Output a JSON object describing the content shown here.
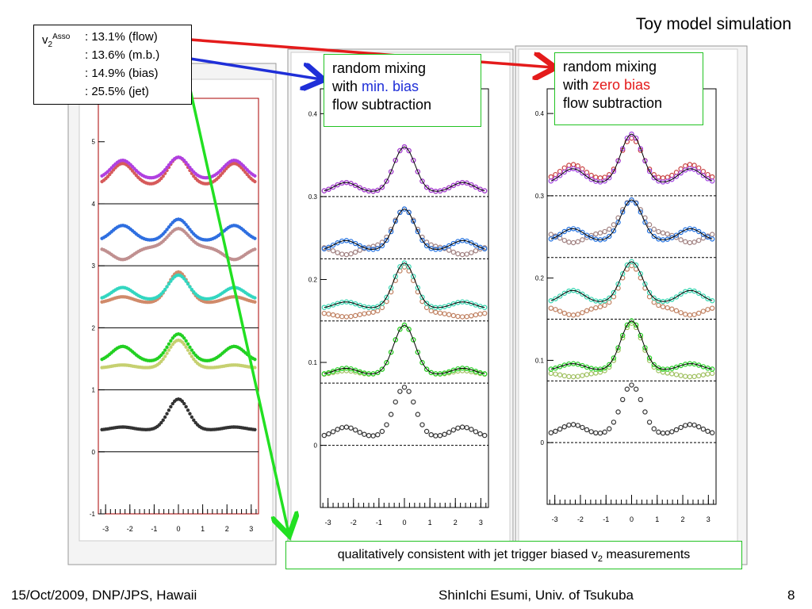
{
  "slide": {
    "title": "Toy model simulation",
    "footer_left": "15/Oct/2009, DNP/JPS, Hawaii",
    "footer_center": "ShinIchi Esumi, Univ. of Tsukuba",
    "footer_right": "8"
  },
  "legend": {
    "label_main": "v",
    "label_sub": "2",
    "label_sup": "Asso",
    "rows": [
      ": 13.1% (flow)",
      ": 13.6% (m.b.)",
      ": 14.9% (bias)",
      ": 25.5% (jet)"
    ]
  },
  "callouts": {
    "minbias": {
      "line1": "random mixing",
      "line2_prefix": "with ",
      "line2_highlight": "min. bias",
      "line3": "flow subtraction"
    },
    "zerobias": {
      "line1": "random mixing",
      "line2_prefix": "with ",
      "line2_highlight": "zero bias",
      "line3": "flow subtraction"
    },
    "bottom_prefix": "qualitatively consistent with jet trigger biased v",
    "bottom_sub": "2",
    "bottom_suffix": " measurements"
  },
  "colors": {
    "arrow_red": "#e41b1b",
    "arrow_blue": "#1f2fd8",
    "arrow_green": "#22e022",
    "highlight_blue": "#1f2fd8",
    "highlight_red": "#e41b1b"
  },
  "chart_data": [
    {
      "type": "scatter",
      "panel": "left",
      "xlim": [
        -3.3,
        3.3
      ],
      "ylim": [
        -1,
        5.7
      ],
      "xticks": [
        -3,
        -2,
        -1,
        0,
        1,
        2,
        3
      ],
      "yticks": [
        -1,
        0,
        1,
        2,
        3,
        4,
        5
      ],
      "xtick_labels": [
        "-3",
        "-2",
        "-1",
        "0",
        "1",
        "2",
        "3"
      ],
      "ytick_labels": [
        "-1",
        "0",
        "1",
        "2",
        "3",
        "4",
        "5"
      ],
      "baselines": [
        0,
        1,
        2,
        3,
        4
      ],
      "series": [
        {
          "color": "#d65a5a",
          "offset": 4.3,
          "a": 0.45,
          "b": 0.35,
          "c": 0.0
        },
        {
          "color": "#b040e0",
          "offset": 4.4,
          "a": 0.35,
          "b": 0.3,
          "c": 0.0
        },
        {
          "color": "#2f6fe0",
          "offset": 3.4,
          "a": 0.35,
          "b": 0.25,
          "c": 0.0
        },
        {
          "color": "#c09090",
          "offset": 3.3,
          "a": 0.3,
          "b": -0.2,
          "c": 0.0
        },
        {
          "color": "#d08a6a",
          "offset": 2.4,
          "a": 0.5,
          "b": 0.1,
          "c": 0.0
        },
        {
          "color": "#33d6c0",
          "offset": 2.45,
          "a": 0.4,
          "b": 0.2,
          "c": 0.0
        },
        {
          "color": "#c6d070",
          "offset": 1.35,
          "a": 0.45,
          "b": 0.05,
          "c": 0.0
        },
        {
          "color": "#22d022",
          "offset": 1.45,
          "a": 0.45,
          "b": 0.25,
          "c": 0.0
        },
        {
          "color": "#333333",
          "offset": 0.35,
          "a": 0.5,
          "b": 0.05,
          "c": 0.0
        }
      ]
    },
    {
      "type": "scatter",
      "panel": "middle",
      "xlim": [
        -3.3,
        3.3
      ],
      "ylim": [
        -0.075,
        0.43
      ],
      "xticks": [
        -3,
        -2,
        -1,
        0,
        1,
        2,
        3
      ],
      "yticks": [
        0,
        0.1,
        0.2,
        0.3,
        0.4
      ],
      "xtick_labels": [
        "-3",
        "-2",
        "-1",
        "0",
        "1",
        "2",
        "3"
      ],
      "ytick_labels": [
        "0",
        "0.1",
        "0.2",
        "0.3",
        "0.4"
      ],
      "baselines": [
        0,
        0.075,
        0.15,
        0.225,
        0.3
      ],
      "series": [
        {
          "color": "#c84040",
          "offset": 0.305,
          "a": 0.055,
          "b": 0.012
        },
        {
          "color": "#a040e0",
          "offset": 0.305,
          "a": 0.055,
          "b": 0.012
        },
        {
          "color": "#a08080",
          "offset": 0.24,
          "a": 0.045,
          "b": -0.01
        },
        {
          "color": "#1f6fe0",
          "offset": 0.235,
          "a": 0.05,
          "b": 0.012
        },
        {
          "color": "#c08060",
          "offset": 0.16,
          "a": 0.055,
          "b": -0.005
        },
        {
          "color": "#33d6b0",
          "offset": 0.165,
          "a": 0.055,
          "b": 0.008
        },
        {
          "color": "#a0c060",
          "offset": 0.085,
          "a": 0.06,
          "b": 0.005
        },
        {
          "color": "#22d022",
          "offset": 0.085,
          "a": 0.06,
          "b": 0.008
        },
        {
          "color": "#333333",
          "offset": 0.01,
          "a": 0.06,
          "b": 0.012
        }
      ]
    },
    {
      "type": "scatter",
      "panel": "right",
      "xlim": [
        -3.3,
        3.3
      ],
      "ylim": [
        -0.075,
        0.43
      ],
      "xticks": [
        -3,
        -2,
        -1,
        0,
        1,
        2,
        3
      ],
      "yticks": [
        0,
        0.1,
        0.2,
        0.3,
        0.4
      ],
      "xtick_labels": [
        "-3",
        "-2",
        "-1",
        "0",
        "1",
        "2",
        "3"
      ],
      "ytick_labels": [
        "0",
        "0.1",
        "0.2",
        "0.3",
        "0.4"
      ],
      "baselines": [
        0,
        0.075,
        0.15,
        0.225,
        0.3
      ],
      "series": [
        {
          "color": "#c84040",
          "offset": 0.32,
          "a": 0.05,
          "b": 0.018
        },
        {
          "color": "#a040e0",
          "offset": 0.315,
          "a": 0.06,
          "b": 0.018
        },
        {
          "color": "#a08080",
          "offset": 0.255,
          "a": 0.04,
          "b": -0.012
        },
        {
          "color": "#1f6fe0",
          "offset": 0.245,
          "a": 0.05,
          "b": 0.015
        },
        {
          "color": "#c08060",
          "offset": 0.165,
          "a": 0.05,
          "b": -0.01
        },
        {
          "color": "#33d6b0",
          "offset": 0.17,
          "a": 0.05,
          "b": 0.015
        },
        {
          "color": "#a0c060",
          "offset": 0.085,
          "a": 0.06,
          "b": -0.005
        },
        {
          "color": "#22d022",
          "offset": 0.088,
          "a": 0.06,
          "b": 0.008
        },
        {
          "color": "#333333",
          "offset": 0.01,
          "a": 0.06,
          "b": 0.012
        }
      ]
    }
  ]
}
